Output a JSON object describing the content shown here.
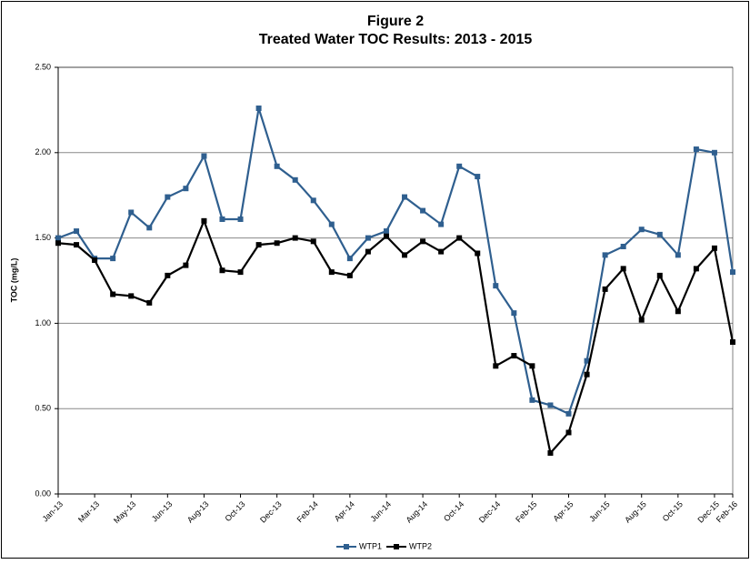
{
  "chart_data": {
    "type": "line",
    "title": "Figure 2",
    "subtitle": "Treated Water TOC Results: 2013 - 2015",
    "y_label": "TOC (mg/L)",
    "categories": [
      "Jan-13",
      null,
      "Mar-13",
      null,
      "May-13",
      null,
      "Jun-13",
      null,
      "Aug-13",
      null,
      "Oct-13",
      null,
      "Dec-13",
      null,
      "Feb-14",
      null,
      "Apr-14",
      null,
      "Jun-14",
      null,
      "Aug-14",
      null,
      "Oct-14",
      null,
      "Dec-14",
      null,
      "Feb-15",
      null,
      "Apr-15",
      null,
      "Jun-15",
      null,
      "Aug-15",
      null,
      "Oct-15",
      null,
      "Dec-15",
      "Feb-16"
    ],
    "series": [
      {
        "name": "WTP1",
        "color": "#2f5f8f",
        "values": [
          1.5,
          1.54,
          1.38,
          1.38,
          1.65,
          1.56,
          1.74,
          1.79,
          1.98,
          1.61,
          1.61,
          2.26,
          1.92,
          1.84,
          1.72,
          1.58,
          1.38,
          1.5,
          1.54,
          1.74,
          1.66,
          1.58,
          1.92,
          1.86,
          1.22,
          1.06,
          0.55,
          0.52,
          0.47,
          0.78,
          1.4,
          1.45,
          1.55,
          1.52,
          1.4,
          2.02,
          2.0,
          1.3
        ]
      },
      {
        "name": "WTP2",
        "color": "#000000",
        "values": [
          1.47,
          1.46,
          1.37,
          1.17,
          1.16,
          1.12,
          1.28,
          1.34,
          1.6,
          1.31,
          1.3,
          1.46,
          1.47,
          1.5,
          1.48,
          1.3,
          1.28,
          1.42,
          1.51,
          1.4,
          1.48,
          1.42,
          1.5,
          1.41,
          0.75,
          0.81,
          0.75,
          0.24,
          0.36,
          0.7,
          1.2,
          1.32,
          1.02,
          1.28,
          1.07,
          1.32,
          1.44,
          0.89
        ]
      }
    ],
    "ylim": [
      0,
      2.5
    ],
    "yticks": [
      {
        "value": 0,
        "label": "0.00"
      },
      {
        "value": 0.5,
        "label": "0.50"
      },
      {
        "value": 1,
        "label": "1.00"
      },
      {
        "value": 1.5,
        "label": "1.50"
      },
      {
        "value": 2,
        "label": "2.00"
      },
      {
        "value": 2.5,
        "label": "2.50"
      }
    ],
    "grid": true,
    "legend": "bottom"
  }
}
